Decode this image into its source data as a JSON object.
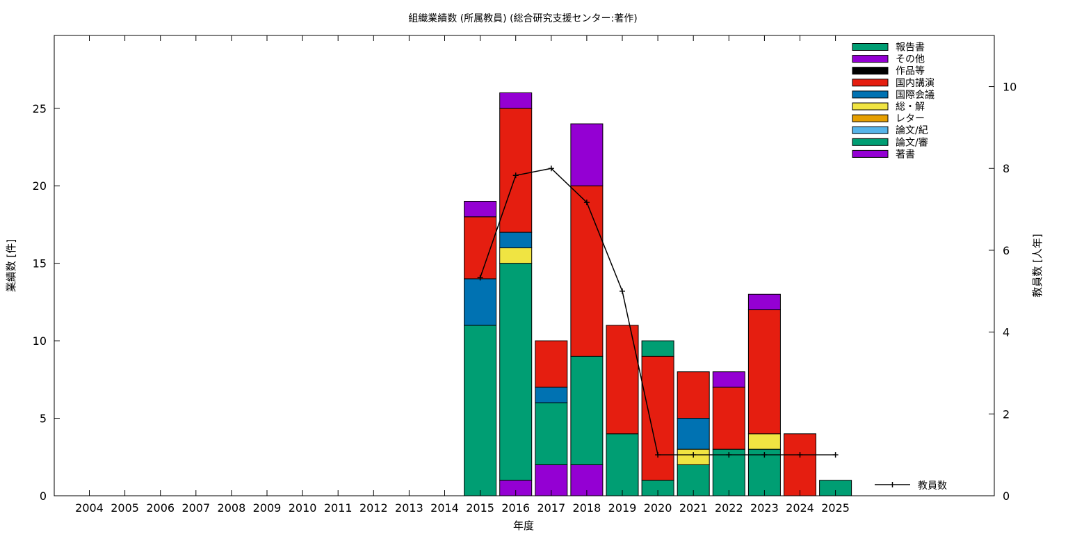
{
  "chart_data": {
    "type": "bar",
    "stacked": true,
    "title": "組織業績数 (所属教員) (総合研究支援センター:著作)",
    "xlabel": "年度",
    "ylabel": "業績数 [件]",
    "y2label": "教員数 [人年]",
    "ylim": [
      0,
      29.7
    ],
    "y2lim": [
      0,
      11.25
    ],
    "yticks": [
      0,
      5,
      10,
      15,
      20,
      25
    ],
    "y2ticks": [
      0,
      2,
      4,
      6,
      8,
      10
    ],
    "grid": false,
    "legend_position": "top-right",
    "categories": [
      "2004",
      "2005",
      "2006",
      "2007",
      "2008",
      "2009",
      "2010",
      "2011",
      "2012",
      "2013",
      "2014",
      "2015",
      "2016",
      "2017",
      "2018",
      "2019",
      "2020",
      "2021",
      "2022",
      "2023",
      "2024",
      "2025"
    ],
    "series": [
      {
        "name": "報告書",
        "color": "#009e73",
        "values": [
          0,
          0,
          0,
          0,
          0,
          0,
          0,
          0,
          0,
          0,
          0,
          0,
          0,
          0,
          0,
          0,
          1,
          0,
          0,
          0,
          0,
          1
        ]
      },
      {
        "name": "その他",
        "color": "#9400d3",
        "values": [
          0,
          0,
          0,
          0,
          0,
          0,
          0,
          0,
          0,
          0,
          0,
          1,
          1,
          0,
          4,
          0,
          0,
          0,
          1,
          1,
          0,
          0
        ]
      },
      {
        "name": "作品等",
        "color": "#000000",
        "values": [
          0,
          0,
          0,
          0,
          0,
          0,
          0,
          0,
          0,
          0,
          0,
          0,
          0,
          0,
          0,
          0,
          0,
          0,
          0,
          0,
          0,
          0
        ]
      },
      {
        "name": "国内講演",
        "color": "#e51e10",
        "values": [
          0,
          0,
          0,
          0,
          0,
          0,
          0,
          0,
          0,
          0,
          0,
          4,
          8,
          3,
          11,
          7,
          8,
          3,
          4,
          8,
          4,
          0
        ]
      },
      {
        "name": "国際会議",
        "color": "#0072b2",
        "values": [
          0,
          0,
          0,
          0,
          0,
          0,
          0,
          0,
          0,
          0,
          0,
          3,
          1,
          1,
          0,
          0,
          0,
          2,
          0,
          0,
          0,
          0
        ]
      },
      {
        "name": "総・解",
        "color": "#f0e442",
        "values": [
          0,
          0,
          0,
          0,
          0,
          0,
          0,
          0,
          0,
          0,
          0,
          0,
          1,
          0,
          0,
          0,
          0,
          1,
          0,
          1,
          0,
          0
        ]
      },
      {
        "name": "レター",
        "color": "#e69f00",
        "values": [
          0,
          0,
          0,
          0,
          0,
          0,
          0,
          0,
          0,
          0,
          0,
          0,
          0,
          0,
          0,
          0,
          0,
          0,
          0,
          0,
          0,
          0
        ]
      },
      {
        "name": "論文/紀",
        "color": "#56b4e9",
        "values": [
          0,
          0,
          0,
          0,
          0,
          0,
          0,
          0,
          0,
          0,
          0,
          0,
          0,
          0,
          0,
          0,
          0,
          0,
          0,
          0,
          0,
          0
        ]
      },
      {
        "name": "論文/審",
        "color": "#009e73",
        "values": [
          0,
          0,
          0,
          0,
          0,
          0,
          0,
          0,
          0,
          0,
          0,
          11,
          14,
          4,
          7,
          4,
          1,
          2,
          3,
          3,
          0,
          0
        ]
      },
      {
        "name": "著書",
        "color": "#9400d3",
        "values": [
          0,
          0,
          0,
          0,
          0,
          0,
          0,
          0,
          0,
          0,
          0,
          0,
          1,
          2,
          2,
          0,
          0,
          0,
          0,
          0,
          0,
          0
        ]
      }
    ],
    "line_series": {
      "name": "教員数",
      "color": "#000000",
      "axis": "y2",
      "x": [
        "2015",
        "2016",
        "2017",
        "2018",
        "2019",
        "2020",
        "2021",
        "2022",
        "2023",
        "2024",
        "2025"
      ],
      "values": [
        5.33,
        7.83,
        8.0,
        7.17,
        5.0,
        1.0,
        1.0,
        1.0,
        1.0,
        1.0,
        1.0
      ]
    }
  }
}
